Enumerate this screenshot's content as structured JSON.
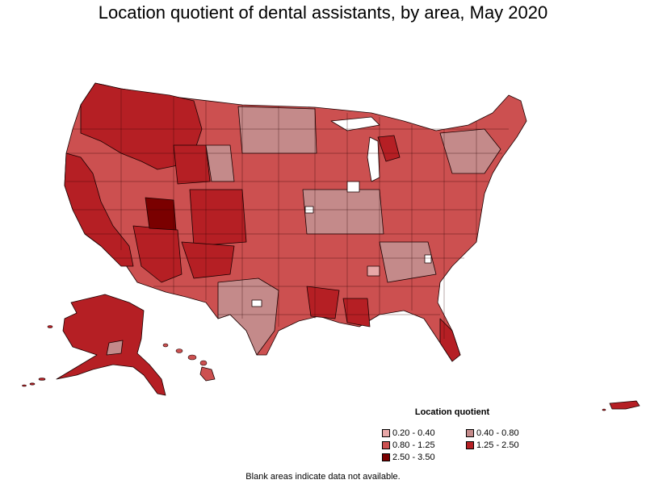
{
  "title": "Location quotient of dental assistants, by area, May 2020",
  "legend": {
    "title": "Location quotient",
    "items": [
      {
        "label": "0.20 - 0.40",
        "color": "#e8a7a7"
      },
      {
        "label": "0.40 - 0.80",
        "color": "#c48a8a"
      },
      {
        "label": "0.80 - 1.25",
        "color": "#cc5050"
      },
      {
        "label": "1.25 - 2.50",
        "color": "#b51f24"
      },
      {
        "label": "2.50 - 3.50",
        "color": "#7a0000"
      }
    ]
  },
  "footnote": "Blank areas indicate data not available."
}
